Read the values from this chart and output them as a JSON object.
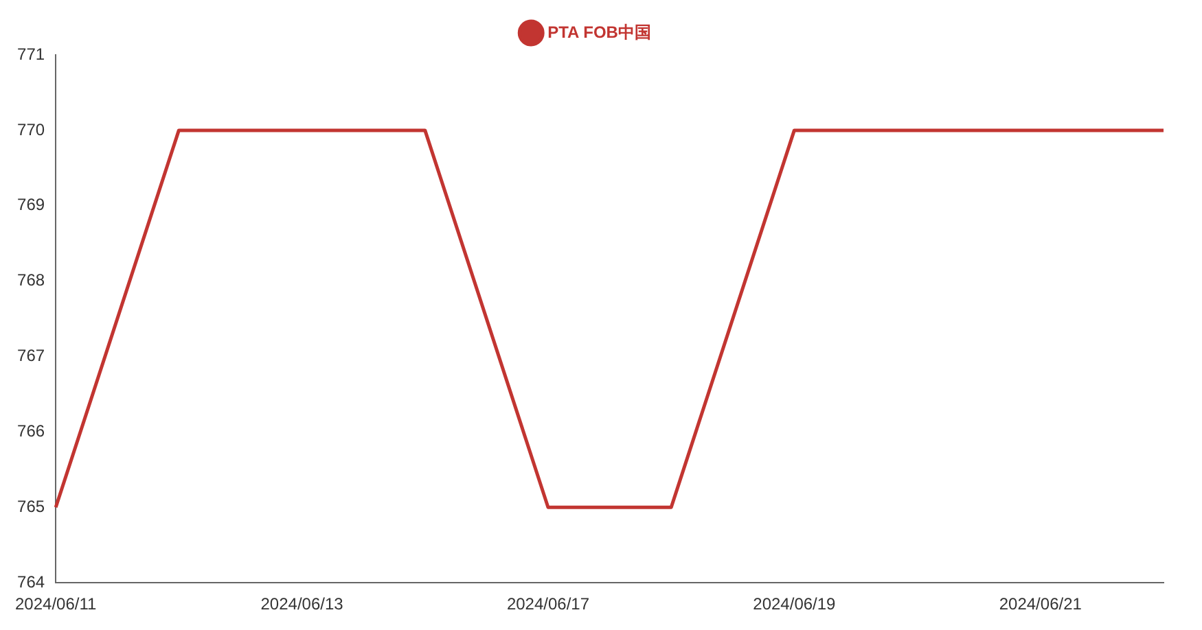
{
  "chart_data": {
    "type": "line",
    "categories": [
      "2024/06/11",
      null,
      "2024/06/13",
      null,
      "2024/06/17",
      null,
      "2024/06/19",
      null,
      "2024/06/21",
      null
    ],
    "series": [
      {
        "name": "PTA FOB中国",
        "color": "#c23531",
        "values": [
          765,
          770,
          770,
          770,
          765,
          765,
          770,
          770,
          770,
          770
        ]
      }
    ],
    "ylim": [
      764,
      771
    ],
    "yticks": [
      764,
      765,
      766,
      767,
      768,
      769,
      770,
      771
    ],
    "grid": false,
    "legend": "top",
    "marker": "none",
    "line_style": "solid"
  }
}
